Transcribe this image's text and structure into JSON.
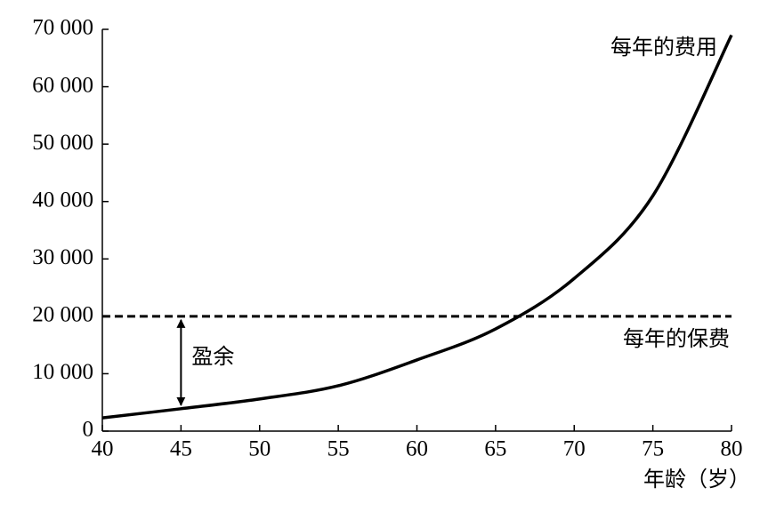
{
  "chart_data": {
    "type": "line",
    "x": [
      40,
      45,
      50,
      55,
      60,
      65,
      70,
      75,
      80
    ],
    "series": [
      {
        "name": "每年的费用",
        "color": "#000000",
        "linestyle": "solid",
        "values": [
          2300,
          3900,
          5600,
          7900,
          12400,
          17800,
          26600,
          41000,
          69000
        ]
      },
      {
        "name": "每年的保费",
        "color": "#000000",
        "linestyle": "dashed",
        "values": [
          20000,
          20000,
          20000,
          20000,
          20000,
          20000,
          20000,
          20000,
          20000
        ]
      }
    ],
    "xlabel": "年龄（岁）",
    "xlim": [
      40,
      80
    ],
    "xticks": [
      40,
      45,
      50,
      55,
      60,
      65,
      70,
      75,
      80
    ],
    "ylim": [
      0,
      70000
    ],
    "yticks": [
      0,
      {
        "value": 10000,
        "label": "10 000"
      },
      {
        "value": 20000,
        "label": "20 000"
      },
      {
        "value": 30000,
        "label": "30 000"
      },
      {
        "value": 40000,
        "label": "40 000"
      },
      {
        "value": 50000,
        "label": "50 000"
      },
      {
        "value": 60000,
        "label": "60 000"
      },
      {
        "value": 70000,
        "label": "70 000"
      }
    ],
    "annotation": {
      "text": "盈余",
      "x": 45
    },
    "grid": false
  }
}
